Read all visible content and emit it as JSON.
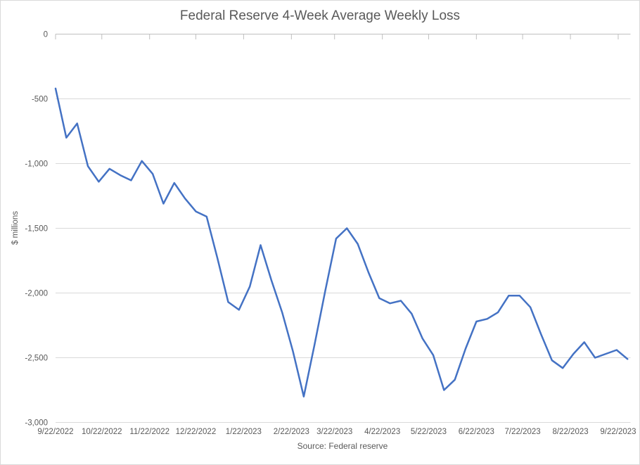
{
  "chart_data": {
    "type": "line",
    "title": "Federal Reserve 4-Week Average Weekly Loss",
    "ylabel": "$ millions",
    "source": "Source: Federal reserve",
    "ylim": [
      -3000,
      0
    ],
    "grid": true,
    "legend": false,
    "colors": {
      "line": "#4472C4",
      "text": "#595959",
      "gridline": "#d9d9d9",
      "axis_line": "#bfbfbf",
      "border": "#d9d9d9"
    },
    "y_axis": {
      "tick_labels": [
        "0",
        "-500",
        "-1,000",
        "-1,500",
        "-2,000",
        "-2,500",
        "-3,000"
      ],
      "tick_values": [
        0,
        -500,
        -1000,
        -1500,
        -2000,
        -2500,
        -3000
      ]
    },
    "x_axis": {
      "tick_labels": [
        "9/22/2022",
        "10/22/2022",
        "11/22/2022",
        "12/22/2022",
        "1/22/2023",
        "2/22/2023",
        "3/22/2023",
        "4/22/2023",
        "5/22/2023",
        "6/22/2023",
        "7/22/2023",
        "8/22/2023",
        "9/22/2023"
      ]
    },
    "x": [
      "9/22/2022",
      "9/29/2022",
      "10/6/2022",
      "10/13/2022",
      "10/20/2022",
      "10/27/2022",
      "11/3/2022",
      "11/10/2022",
      "11/17/2022",
      "11/24/2022",
      "12/1/2022",
      "12/8/2022",
      "12/15/2022",
      "12/22/2022",
      "12/29/2022",
      "1/5/2023",
      "1/12/2023",
      "1/19/2023",
      "1/26/2023",
      "2/2/2023",
      "2/9/2023",
      "2/16/2023",
      "2/23/2023",
      "3/2/2023",
      "3/9/2023",
      "3/16/2023",
      "3/23/2023",
      "3/30/2023",
      "4/6/2023",
      "4/13/2023",
      "4/20/2023",
      "4/27/2023",
      "5/4/2023",
      "5/11/2023",
      "5/18/2023",
      "5/25/2023",
      "6/1/2023",
      "6/8/2023",
      "6/15/2023",
      "6/22/2023",
      "6/29/2023",
      "7/6/2023",
      "7/13/2023",
      "7/20/2023",
      "7/27/2023",
      "8/3/2023",
      "8/10/2023",
      "8/17/2023",
      "8/24/2023",
      "8/31/2023",
      "9/7/2023",
      "9/14/2023",
      "9/21/2023",
      "9/28/2023"
    ],
    "values": [
      -420,
      -800,
      -690,
      -1020,
      -1140,
      -1040,
      -1090,
      -1130,
      -980,
      -1080,
      -1310,
      -1150,
      -1270,
      -1370,
      -1410,
      -1730,
      -2070,
      -2130,
      -1950,
      -1630,
      -1900,
      -2150,
      -2450,
      -2800,
      -2400,
      -1980,
      -1580,
      -1500,
      -1620,
      -1840,
      -2040,
      -2080,
      -2060,
      -2160,
      -2350,
      -2480,
      -2750,
      -2670,
      -2430,
      -2220,
      -2200,
      -2150,
      -2020,
      -2020,
      -2110,
      -2320,
      -2520,
      -2580,
      -2470,
      -2380,
      -2500,
      -2470,
      -2440,
      -2510
    ]
  }
}
